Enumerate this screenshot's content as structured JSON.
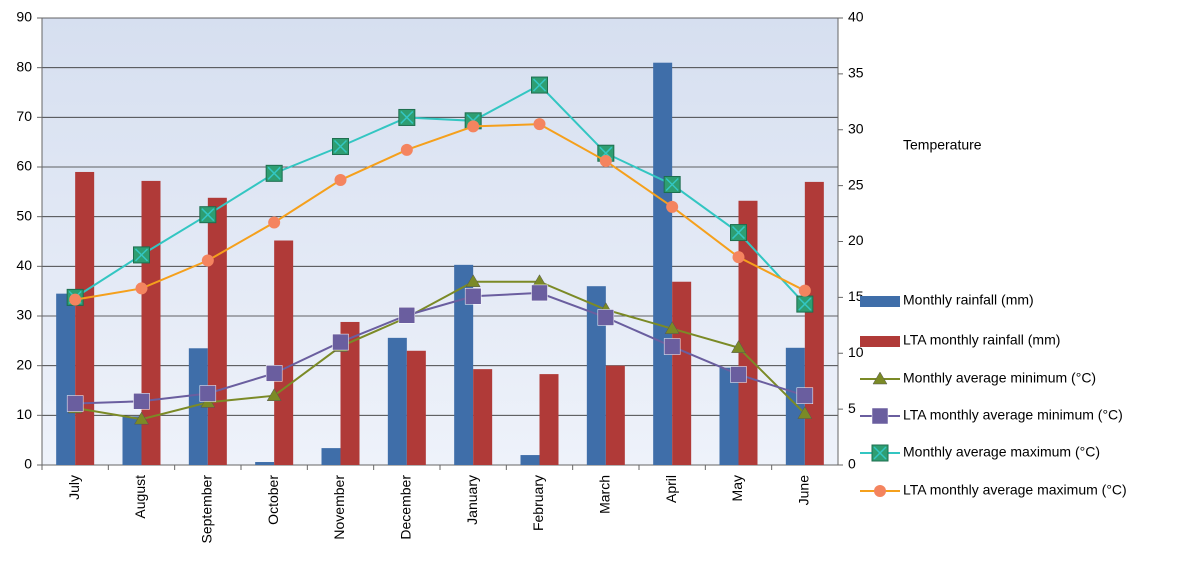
{
  "chart_data": {
    "type": "bar",
    "y2_label": "Temperature",
    "categories": [
      "July",
      "August",
      "September",
      "October",
      "November",
      "December",
      "January",
      "February",
      "March",
      "April",
      "May",
      "June"
    ],
    "series": [
      {
        "name": "Monthly rainfall (mm)",
        "type": "bar",
        "color": "#3f6ea9",
        "values": [
          34.5,
          9.8,
          23.5,
          0.6,
          3.4,
          25.6,
          40.3,
          2.0,
          36.0,
          81.0,
          19.6,
          23.6
        ]
      },
      {
        "name": "LTA monthly rainfall (mm)",
        "type": "bar",
        "color": "#b03a38",
        "values": [
          59.0,
          57.2,
          53.8,
          45.2,
          28.8,
          23.0,
          19.3,
          18.3,
          20.0,
          36.9,
          53.2,
          57.0
        ]
      },
      {
        "name": "Monthly average minimum (°C)",
        "type": "line",
        "axis": "y2",
        "marker": "triangle",
        "color": "#7b8a26",
        "values": [
          5.1,
          4.1,
          5.6,
          6.2,
          10.6,
          13.2,
          16.4,
          16.4,
          13.9,
          12.2,
          10.5,
          4.6
        ]
      },
      {
        "name": "LTA monthly average minimum (°C)",
        "type": "line",
        "axis": "y2",
        "marker": "square",
        "color": "#6a5e9f",
        "values": [
          5.5,
          5.7,
          6.4,
          8.2,
          11.0,
          13.4,
          15.1,
          15.4,
          13.2,
          10.6,
          8.1,
          6.2
        ]
      },
      {
        "name": "Monthly average maximum (°C)",
        "type": "line",
        "axis": "y2",
        "marker": "crossbox",
        "color": "#33c6c2",
        "values": [
          15.0,
          18.8,
          22.4,
          26.1,
          28.5,
          31.1,
          30.8,
          34.0,
          27.9,
          25.1,
          20.8,
          14.4
        ]
      },
      {
        "name": "LTA monthly average maximum (°C)",
        "type": "line",
        "axis": "y2",
        "marker": "circle",
        "color": "#f5a01c",
        "values": [
          14.8,
          15.8,
          18.3,
          21.7,
          25.5,
          28.2,
          30.3,
          30.5,
          27.2,
          23.1,
          18.6,
          15.6
        ]
      }
    ],
    "ylim": [
      0,
      90
    ],
    "yticks": [
      0,
      10,
      20,
      30,
      40,
      50,
      60,
      70,
      80,
      90
    ],
    "y2lim": [
      0,
      40
    ],
    "y2ticks": [
      0,
      5,
      10,
      15,
      20,
      25,
      30,
      35,
      40
    ],
    "grid": true,
    "legend": "right"
  }
}
